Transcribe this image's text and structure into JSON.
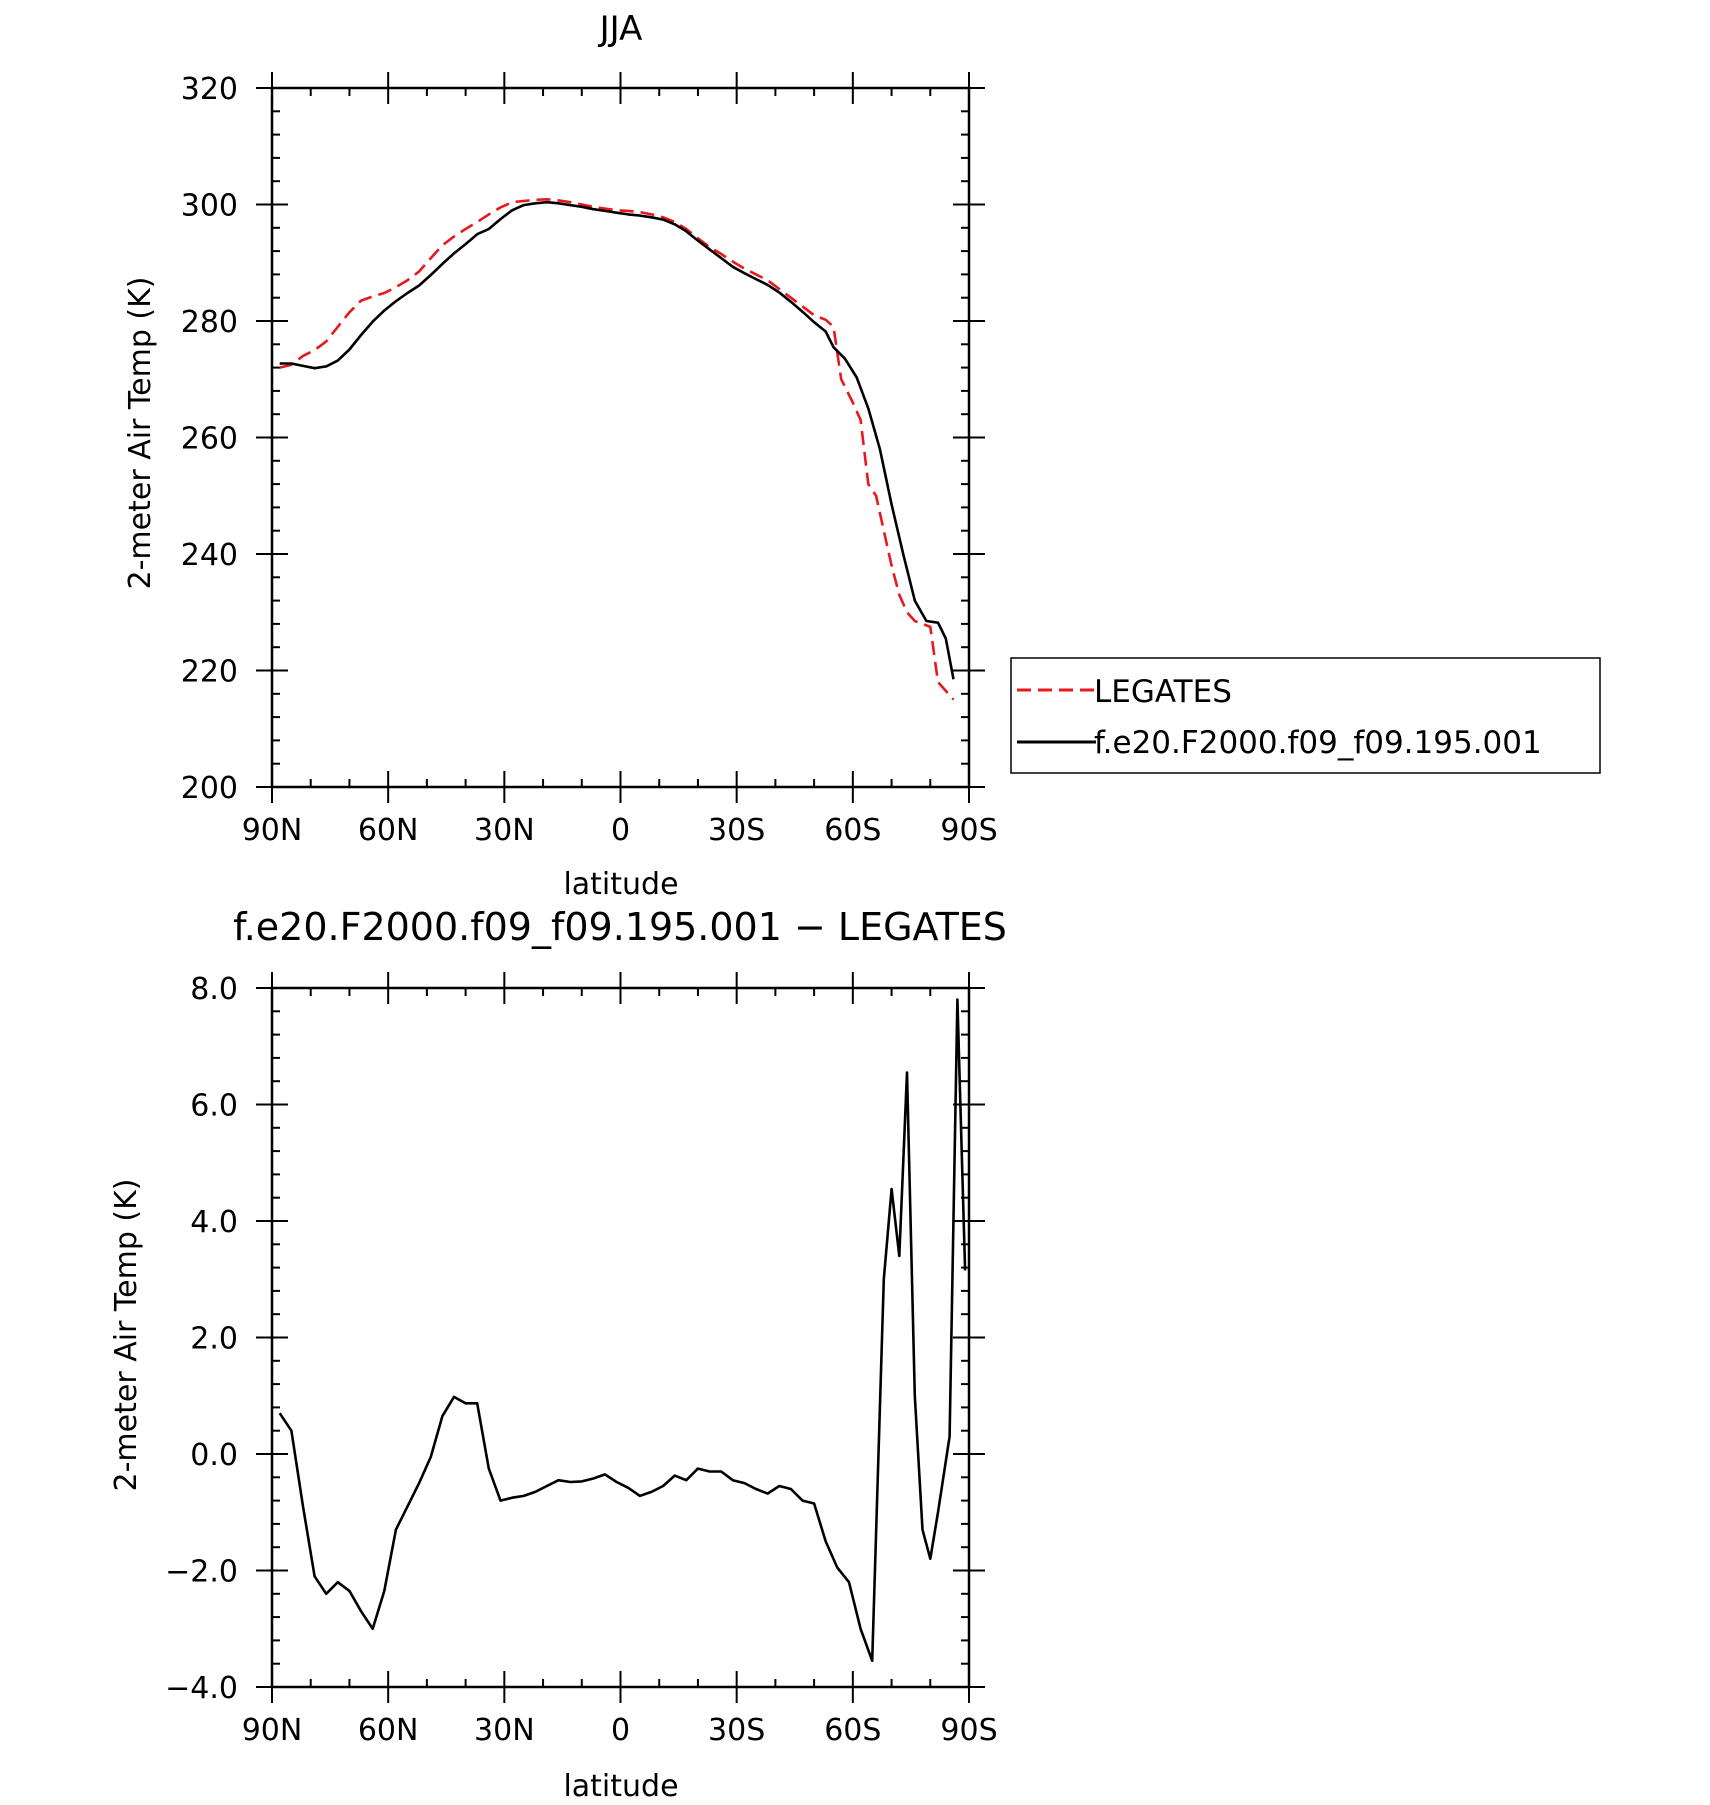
{
  "chart_data": [
    {
      "type": "line",
      "title": "JJA",
      "xlabel": "latitude",
      "ylabel": "2-meter Air Temp (K)",
      "xlim": [
        90,
        -90
      ],
      "ylim": [
        200,
        320
      ],
      "x_ticks": [
        {
          "value": 90,
          "label": "90N"
        },
        {
          "value": 60,
          "label": "60N"
        },
        {
          "value": 30,
          "label": "30N"
        },
        {
          "value": 0,
          "label": "0"
        },
        {
          "value": -30,
          "label": "30S"
        },
        {
          "value": -60,
          "label": "60S"
        },
        {
          "value": -90,
          "label": "90S"
        }
      ],
      "y_ticks": [
        {
          "value": 200,
          "label": "200"
        },
        {
          "value": 220,
          "label": "220"
        },
        {
          "value": 240,
          "label": "240"
        },
        {
          "value": 260,
          "label": "260"
        },
        {
          "value": 280,
          "label": "280"
        },
        {
          "value": 300,
          "label": "300"
        },
        {
          "value": 320,
          "label": "320"
        }
      ],
      "legend_position": "right",
      "series": [
        {
          "name": "LEGATES",
          "color": "#e8191d",
          "dash": true,
          "points": [
            [
              88,
              272.0
            ],
            [
              85,
              272.5
            ],
            [
              82,
              274
            ],
            [
              79,
              275
            ],
            [
              76,
              276.5
            ],
            [
              73,
              279
            ],
            [
              70,
              281.5
            ],
            [
              67,
              283.5
            ],
            [
              64,
              284.2
            ],
            [
              61,
              284.8
            ],
            [
              58,
              285.8
            ],
            [
              55,
              287
            ],
            [
              52,
              288.5
            ],
            [
              49,
              290.8
            ],
            [
              46,
              293
            ],
            [
              43,
              294.5
            ],
            [
              40,
              295.8
            ],
            [
              37,
              297
            ],
            [
              34,
              298.3
            ],
            [
              31,
              299.5
            ],
            [
              28,
              300.4
            ],
            [
              25,
              300.6
            ],
            [
              22,
              300.8
            ],
            [
              19,
              300.9
            ],
            [
              16,
              300.7
            ],
            [
              13,
              300.4
            ],
            [
              10,
              300
            ],
            [
              7,
              299.6
            ],
            [
              4,
              299.3
            ],
            [
              1,
              299
            ],
            [
              -2,
              298.9
            ],
            [
              -5,
              298.7
            ],
            [
              -8,
              298.3
            ],
            [
              -11,
              297.8
            ],
            [
              -14,
              297
            ],
            [
              -17,
              295.8
            ],
            [
              -20,
              294.2
            ],
            [
              -23,
              292.7
            ],
            [
              -26,
              291.5
            ],
            [
              -29,
              290.2
            ],
            [
              -32,
              289
            ],
            [
              -35,
              288
            ],
            [
              -38,
              287
            ],
            [
              -41,
              285.5
            ],
            [
              -44,
              284
            ],
            [
              -47,
              282.5
            ],
            [
              -50,
              281
            ],
            [
              -53,
              280.2
            ],
            [
              -55,
              279
            ],
            [
              -57,
              270
            ],
            [
              -60,
              266
            ],
            [
              -62,
              263
            ],
            [
              -64,
              252
            ],
            [
              -66,
              250
            ],
            [
              -68,
              244
            ],
            [
              -70,
              238
            ],
            [
              -72,
              233
            ],
            [
              -74,
              230
            ],
            [
              -76,
              228.5
            ],
            [
              -78,
              228
            ],
            [
              -80,
              227.5
            ],
            [
              -82,
              218
            ],
            [
              -84,
              216.5
            ],
            [
              -86,
              215
            ]
          ]
        },
        {
          "name": "f.e20.F2000.f09_f09.195.001",
          "color": "#000000",
          "dash": false,
          "points": [
            [
              88,
              272.7
            ],
            [
              85,
              272.7
            ],
            [
              82,
              272.3
            ],
            [
              79,
              271.9
            ],
            [
              76,
              272.2
            ],
            [
              73,
              273.2
            ],
            [
              70,
              275.1
            ],
            [
              67,
              277.6
            ],
            [
              64,
              279.9
            ],
            [
              61,
              281.8
            ],
            [
              58,
              283.4
            ],
            [
              55,
              284.8
            ],
            [
              52,
              286.1
            ],
            [
              49,
              287.9
            ],
            [
              46,
              289.8
            ],
            [
              43,
              291.6
            ],
            [
              40,
              293.2
            ],
            [
              37,
              294.9
            ],
            [
              34,
              295.8
            ],
            [
              31,
              297.5
            ],
            [
              28,
              299.0
            ],
            [
              25,
              299.9
            ],
            [
              22,
              300.2
            ],
            [
              19,
              300.4
            ],
            [
              16,
              300.2
            ],
            [
              13,
              299.9
            ],
            [
              10,
              299.6
            ],
            [
              7,
              299.2
            ],
            [
              4,
              298.9
            ],
            [
              1,
              298.6
            ],
            [
              -2,
              298.3
            ],
            [
              -5,
              298.1
            ],
            [
              -8,
              297.8
            ],
            [
              -11,
              297.4
            ],
            [
              -14,
              296.6
            ],
            [
              -17,
              295.4
            ],
            [
              -20,
              293.8
            ],
            [
              -23,
              292.3
            ],
            [
              -26,
              290.8
            ],
            [
              -29,
              289.3
            ],
            [
              -32,
              288.2
            ],
            [
              -35,
              287.2
            ],
            [
              -38,
              286.2
            ],
            [
              -41,
              284.9
            ],
            [
              -44,
              283.3
            ],
            [
              -47,
              281.6
            ],
            [
              -50,
              279.8
            ],
            [
              -53,
              278.2
            ],
            [
              -55,
              275.5
            ],
            [
              -58,
              273.5
            ],
            [
              -61,
              270.3
            ],
            [
              -64,
              265
            ],
            [
              -67,
              258
            ],
            [
              -70,
              248.5
            ],
            [
              -73,
              240
            ],
            [
              -76,
              232
            ],
            [
              -79,
              228.5
            ],
            [
              -82,
              228.2
            ],
            [
              -84,
              225.5
            ],
            [
              -86,
              218.5
            ]
          ]
        }
      ]
    },
    {
      "type": "line",
      "title": "f.e20.F2000.f09_f09.195.001 − LEGATES",
      "xlabel": "latitude",
      "ylabel": "2-meter Air Temp (K)",
      "xlim": [
        90,
        -90
      ],
      "ylim": [
        -4,
        8
      ],
      "x_ticks": [
        {
          "value": 90,
          "label": "90N"
        },
        {
          "value": 60,
          "label": "60N"
        },
        {
          "value": 30,
          "label": "30N"
        },
        {
          "value": 0,
          "label": "0"
        },
        {
          "value": -30,
          "label": "30S"
        },
        {
          "value": -60,
          "label": "60S"
        },
        {
          "value": -90,
          "label": "90S"
        }
      ],
      "y_ticks": [
        {
          "value": -4,
          "label": "−4.0"
        },
        {
          "value": -2,
          "label": "−2.0"
        },
        {
          "value": 0,
          "label": "0.0"
        },
        {
          "value": 2,
          "label": "2.0"
        },
        {
          "value": 4,
          "label": "4.0"
        },
        {
          "value": 6,
          "label": "6.0"
        },
        {
          "value": 8,
          "label": "8.0"
        }
      ],
      "series": [
        {
          "name": "",
          "color": "#000000",
          "dash": false,
          "points": [
            [
              88,
              0.7
            ],
            [
              85,
              0.4
            ],
            [
              82,
              -0.9
            ],
            [
              79,
              -2.1
            ],
            [
              76,
              -2.4
            ],
            [
              73,
              -2.2
            ],
            [
              70,
              -2.35
            ],
            [
              67,
              -2.7
            ],
            [
              64,
              -3.0
            ],
            [
              61,
              -2.35
            ],
            [
              58,
              -1.3
            ],
            [
              55,
              -0.9
            ],
            [
              52,
              -0.5
            ],
            [
              49,
              -0.05
            ],
            [
              46,
              0.65
            ],
            [
              43,
              0.98
            ],
            [
              40,
              0.87
            ],
            [
              37,
              0.87
            ],
            [
              34,
              -0.25
            ],
            [
              31,
              -0.8
            ],
            [
              28,
              -0.75
            ],
            [
              25,
              -0.72
            ],
            [
              22,
              -0.65
            ],
            [
              19,
              -0.55
            ],
            [
              16,
              -0.45
            ],
            [
              13,
              -0.48
            ],
            [
              10,
              -0.47
            ],
            [
              7,
              -0.42
            ],
            [
              4,
              -0.35
            ],
            [
              1,
              -0.48
            ],
            [
              -2,
              -0.58
            ],
            [
              -5,
              -0.72
            ],
            [
              -8,
              -0.65
            ],
            [
              -11,
              -0.55
            ],
            [
              -14,
              -0.37
            ],
            [
              -17,
              -0.45
            ],
            [
              -20,
              -0.25
            ],
            [
              -23,
              -0.3
            ],
            [
              -26,
              -0.3
            ],
            [
              -29,
              -0.45
            ],
            [
              -32,
              -0.5
            ],
            [
              -35,
              -0.6
            ],
            [
              -38,
              -0.68
            ],
            [
              -41,
              -0.55
            ],
            [
              -44,
              -0.6
            ],
            [
              -47,
              -0.8
            ],
            [
              -50,
              -0.85
            ],
            [
              -53,
              -1.5
            ],
            [
              -56,
              -1.95
            ],
            [
              -59,
              -2.2
            ],
            [
              -62,
              -3.0
            ],
            [
              -65,
              -3.55
            ],
            [
              -68,
              3.0
            ],
            [
              -70,
              4.55
            ],
            [
              -72,
              3.4
            ],
            [
              -74,
              6.55
            ],
            [
              -76,
              1.0
            ],
            [
              -78,
              -1.3
            ],
            [
              -80,
              -1.8
            ],
            [
              -82,
              -1.0
            ],
            [
              -85,
              0.3
            ],
            [
              -87,
              7.8
            ],
            [
              -89,
              3.15
            ]
          ]
        }
      ]
    }
  ]
}
